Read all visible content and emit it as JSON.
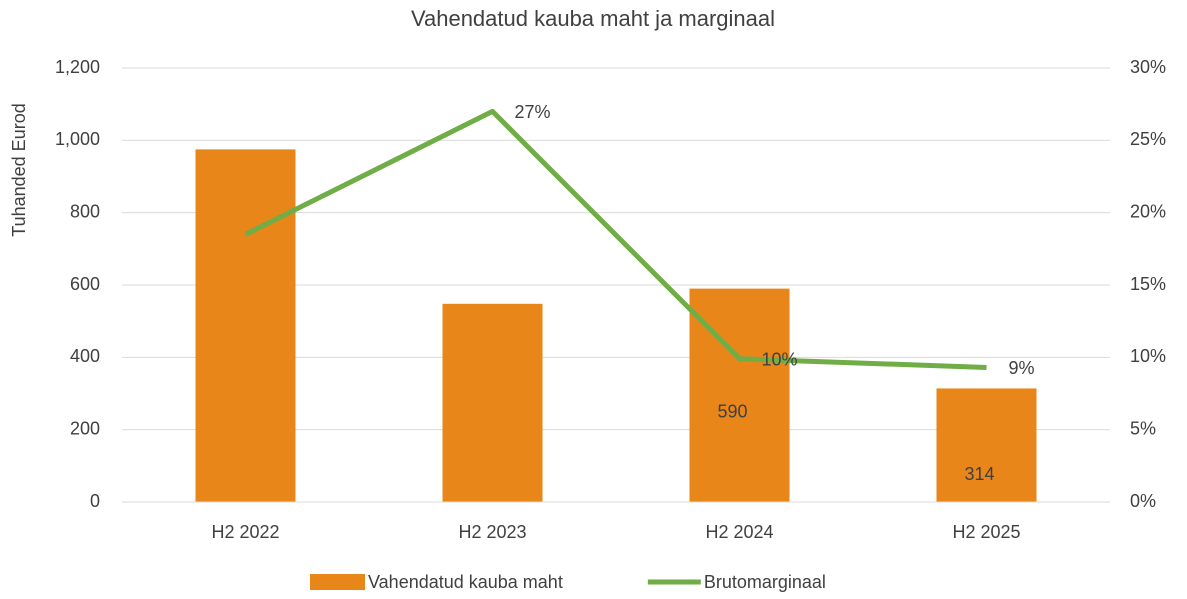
{
  "chart_data": {
    "type": "bar-line",
    "title": "Vahendatud kauba maht ja marginaal",
    "y_label": "Tuhanded Eurod",
    "categories": [
      "H2 2022",
      "H2 2023",
      "H2 2024",
      "H2 2025"
    ],
    "series": [
      {
        "name": "Vahendatud kauba maht",
        "type": "bar",
        "color": "#e8861a",
        "values": [
          975,
          548,
          590,
          314
        ],
        "value_labels": [
          null,
          null,
          "590",
          "314"
        ]
      },
      {
        "name": "Brutomarginaal",
        "type": "line",
        "axis": "y2",
        "color": "#70ad47",
        "values": [
          18.5,
          27,
          9.9,
          9.3
        ],
        "value_labels": [
          null,
          "27%",
          "10%",
          "9%"
        ]
      }
    ],
    "ylim": [
      0,
      1200
    ],
    "yticks": [
      0,
      200,
      400,
      600,
      800,
      {
        "value": 1000,
        "label": "1,000"
      },
      {
        "value": 1200,
        "label": "1,200"
      }
    ],
    "y2lim": [
      0,
      30
    ],
    "y2ticks": [
      {
        "value": 0,
        "label": "0%"
      },
      {
        "value": 5,
        "label": "5%"
      },
      {
        "value": 10,
        "label": "10%"
      },
      {
        "value": 15,
        "label": "15%"
      },
      {
        "value": 20,
        "label": "20%"
      },
      {
        "value": 25,
        "label": "25%"
      },
      {
        "value": 30,
        "label": "30%"
      }
    ],
    "grid": true,
    "legend": "bottom"
  }
}
